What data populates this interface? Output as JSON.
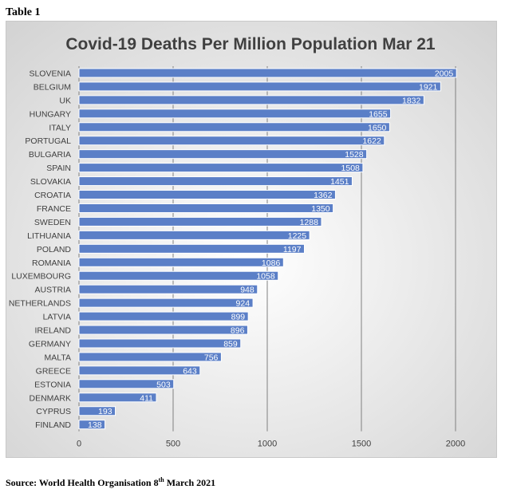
{
  "page": {
    "table_label": "Table 1",
    "source_prefix": "Source: World Health Organisation 8",
    "source_sup": "th",
    "source_suffix": " March 2021"
  },
  "colors": {
    "bar": "#5b7fc7",
    "bar_border": "#ffffff",
    "grid": "#808080",
    "axis_text": "#404040",
    "title": "#404040",
    "value_text": "#ffffff"
  },
  "chart_data": {
    "type": "bar",
    "orientation": "horizontal",
    "title": "Covid-19 Deaths Per Million Population Mar 21",
    "xlabel": "",
    "ylabel": "",
    "xlim": [
      0,
      2000
    ],
    "xticks": [
      0,
      500,
      1000,
      1500,
      2000
    ],
    "grid": true,
    "categories": [
      "SLOVENIA",
      "BELGIUM",
      "UK",
      "HUNGARY",
      "ITALY",
      "PORTUGAL",
      "BULGARIA",
      "SPAIN",
      "SLOVAKIA",
      "CROATIA",
      "FRANCE",
      "SWEDEN",
      "LITHUANIA",
      "POLAND",
      "ROMANIA",
      "LUXEMBOURG",
      "AUSTRIA",
      "NETHERLANDS",
      "LATVIA",
      "IRELAND",
      "GERMANY",
      "MALTA",
      "GREECE",
      "ESTONIA",
      "DENMARK",
      "CYPRUS",
      "FINLAND"
    ],
    "values": [
      2005,
      1921,
      1832,
      1655,
      1650,
      1622,
      1528,
      1508,
      1451,
      1362,
      1350,
      1288,
      1225,
      1197,
      1086,
      1058,
      948,
      924,
      899,
      896,
      859,
      756,
      643,
      503,
      411,
      193,
      138
    ]
  }
}
